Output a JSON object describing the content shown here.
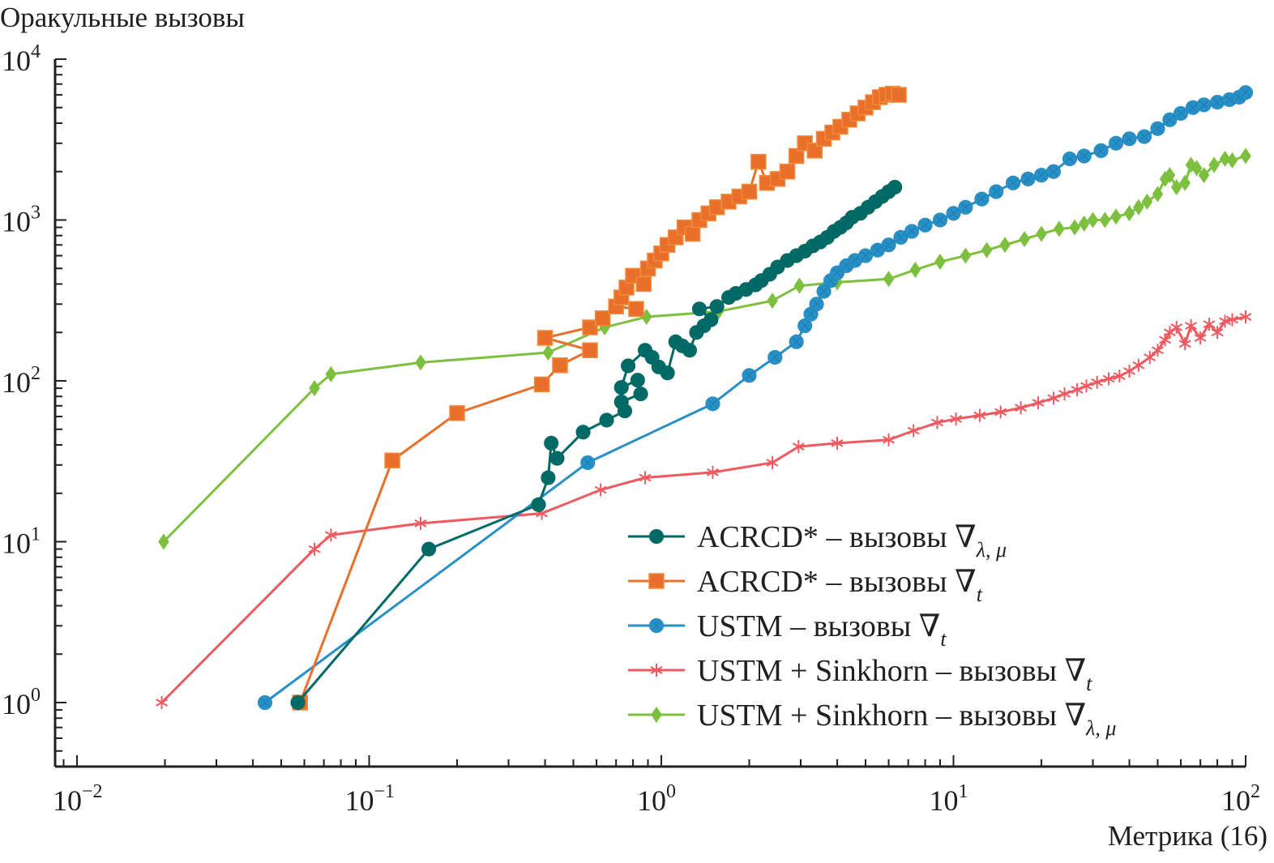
{
  "chart_data": {
    "type": "line",
    "title": "",
    "ylabel": "Оракульные вызовы",
    "xlabel": "Метрика (16)",
    "xscale": "log",
    "yscale": "log",
    "xlim": [
      0.01,
      100
    ],
    "ylim": [
      0.5,
      10000
    ],
    "x_ticks": [
      {
        "base": "10",
        "exp": "−2",
        "value": 0.01
      },
      {
        "base": "10",
        "exp": "−1",
        "value": 0.1
      },
      {
        "base": "10",
        "exp": "0",
        "value": 1
      },
      {
        "base": "10",
        "exp": "1",
        "value": 10
      },
      {
        "base": "10",
        "exp": "2",
        "value": 100
      }
    ],
    "y_ticks": [
      {
        "base": "10",
        "exp": "0",
        "value": 1
      },
      {
        "base": "10",
        "exp": "1",
        "value": 10
      },
      {
        "base": "10",
        "exp": "2",
        "value": 100
      },
      {
        "base": "10",
        "exp": "3",
        "value": 1000
      },
      {
        "base": "10",
        "exp": "4",
        "value": 10000
      }
    ],
    "grid": false,
    "legend_position": "bottom-right",
    "series": [
      {
        "name": "ACRCD* – вызовы ∇λ, μ",
        "label_main": "ACRCD* – вызовы ∇",
        "label_sub": "λ, μ",
        "color": "#006b66",
        "marker": "circle",
        "x": [
          0.057,
          0.16,
          0.38,
          0.41,
          0.42,
          0.44,
          0.54,
          0.65,
          0.75,
          0.73,
          0.85,
          0.83,
          0.73,
          0.77,
          0.88,
          0.93,
          0.98,
          1.05,
          1.12,
          1.18,
          1.25,
          1.32,
          1.4,
          1.48,
          1.35,
          1.55,
          1.7,
          1.8,
          1.95,
          2.1,
          2.2,
          2.35,
          2.5,
          2.7,
          2.9,
          3.1,
          3.3,
          3.5,
          3.7,
          3.9,
          4.1,
          4.3,
          4.5,
          4.8,
          5.1,
          5.4,
          5.7,
          6.0,
          6.3
        ],
        "y": [
          1,
          9,
          17,
          25,
          41,
          33,
          48,
          57,
          65,
          74,
          83,
          101,
          91,
          124,
          155,
          140,
          122,
          112,
          175,
          165,
          155,
          200,
          220,
          240,
          280,
          290,
          330,
          350,
          370,
          395,
          420,
          460,
          510,
          560,
          600,
          640,
          690,
          730,
          780,
          850,
          900,
          960,
          1040,
          1100,
          1200,
          1300,
          1400,
          1500,
          1600
        ]
      },
      {
        "name": "ACRCD* – вызовы ∇t",
        "label_main": "ACRCD* – вызовы ∇",
        "label_sub": "t",
        "color": "#e8702a",
        "marker": "square",
        "x": [
          0.058,
          0.12,
          0.2,
          0.39,
          0.45,
          0.57,
          0.4,
          0.57,
          0.63,
          0.7,
          0.82,
          0.73,
          0.76,
          0.8,
          0.87,
          0.9,
          0.95,
          1.0,
          1.05,
          1.12,
          1.2,
          1.28,
          1.35,
          1.45,
          1.55,
          1.7,
          1.85,
          2.0,
          2.15,
          2.3,
          2.5,
          2.7,
          2.9,
          3.1,
          3.35,
          3.6,
          3.85,
          4.1,
          4.4,
          4.7,
          5.0,
          5.3,
          5.6,
          5.9,
          6.2,
          6.5
        ],
        "y": [
          1,
          32,
          63,
          95,
          125,
          155,
          185,
          215,
          245,
          290,
          280,
          330,
          380,
          450,
          400,
          500,
          560,
          620,
          700,
          780,
          900,
          820,
          1000,
          1100,
          1200,
          1300,
          1400,
          1500,
          2300,
          1700,
          1800,
          2000,
          2500,
          3000,
          2700,
          3200,
          3500,
          3800,
          4200,
          4600,
          5000,
          5400,
          5800,
          6000,
          6100,
          6000
        ]
      },
      {
        "name": "USTM – вызовы ∇t",
        "label_main": "USTM – вызовы ∇",
        "label_sub": "t",
        "color": "#2790c6",
        "marker": "circle-x",
        "x": [
          0.044,
          0.56,
          1.5,
          2.0,
          2.45,
          2.9,
          3.1,
          3.25,
          3.4,
          3.6,
          3.8,
          4.0,
          4.3,
          4.6,
          5.0,
          5.5,
          6.0,
          6.6,
          7.2,
          8.0,
          9.0,
          10.0,
          11.0,
          12.5,
          14.0,
          16.0,
          18.0,
          20.0,
          22.0,
          25.0,
          28.0,
          32.0,
          36.0,
          40.0,
          45.0,
          50.0,
          55.0,
          60.0,
          66.0,
          72.0,
          80.0,
          88.0,
          95.0,
          100.0
        ],
        "y": [
          1,
          31,
          72,
          108,
          140,
          175,
          220,
          260,
          300,
          360,
          420,
          470,
          520,
          560,
          600,
          650,
          700,
          780,
          850,
          930,
          1000,
          1100,
          1200,
          1350,
          1500,
          1700,
          1800,
          1900,
          2000,
          2400,
          2500,
          2700,
          3000,
          3200,
          3300,
          3700,
          4200,
          4600,
          5000,
          5200,
          5400,
          5600,
          5800,
          6200
        ]
      },
      {
        "name": "USTM + Sinkhorn – вызовы ∇t",
        "label_main": "USTM + Sinkhorn – вызовы ∇",
        "label_sub": "t",
        "color": "#ee5a5f",
        "marker": "star",
        "x": [
          0.0195,
          0.065,
          0.074,
          0.15,
          0.39,
          0.62,
          0.88,
          1.5,
          2.4,
          2.95,
          4.0,
          6.0,
          7.3,
          8.8,
          10.2,
          12.3,
          14.5,
          17.0,
          19.5,
          22.0,
          24.0,
          26.5,
          28.5,
          31.0,
          34.0,
          37.0,
          40.0,
          43.0,
          47.0,
          50.0,
          53.0,
          55.0,
          58.0,
          62.0,
          65.0,
          70.0,
          75.0,
          80.0,
          85.0,
          90.0,
          100.0
        ],
        "y": [
          1,
          9,
          11,
          13,
          15,
          21,
          25,
          27,
          31,
          39,
          41,
          43,
          49,
          55,
          58,
          61,
          64,
          68,
          73,
          78,
          83,
          88,
          93,
          98,
          103,
          107,
          115,
          125,
          140,
          155,
          180,
          200,
          215,
          170,
          220,
          185,
          225,
          200,
          235,
          240,
          250
        ]
      },
      {
        "name": "USTM + Sinkhorn – вызовы ∇λ, μ",
        "label_main": "USTM + Sinkhorn – вызовы ∇",
        "label_sub": "λ, μ",
        "color": "#7dc03f",
        "marker": "diamond",
        "x": [
          0.0198,
          0.065,
          0.074,
          0.15,
          0.41,
          0.64,
          0.89,
          1.57,
          2.4,
          2.97,
          4.0,
          6.0,
          7.4,
          9.0,
          11.0,
          13.0,
          15.0,
          17.5,
          20.0,
          23.0,
          26.0,
          28.0,
          30.0,
          33.0,
          36.0,
          40.0,
          43.0,
          46.0,
          50.0,
          53.0,
          55.0,
          58.0,
          62.0,
          65.0,
          68.0,
          72.0,
          78.0,
          85.0,
          90.0,
          100.0
        ],
        "y": [
          10,
          90,
          110,
          130,
          150,
          215,
          250,
          270,
          315,
          390,
          410,
          430,
          490,
          550,
          600,
          650,
          700,
          760,
          820,
          880,
          900,
          950,
          1000,
          1000,
          1050,
          1100,
          1200,
          1300,
          1450,
          1800,
          1900,
          1600,
          1700,
          2200,
          2100,
          1900,
          2200,
          2400,
          2350,
          2500
        ]
      }
    ]
  }
}
